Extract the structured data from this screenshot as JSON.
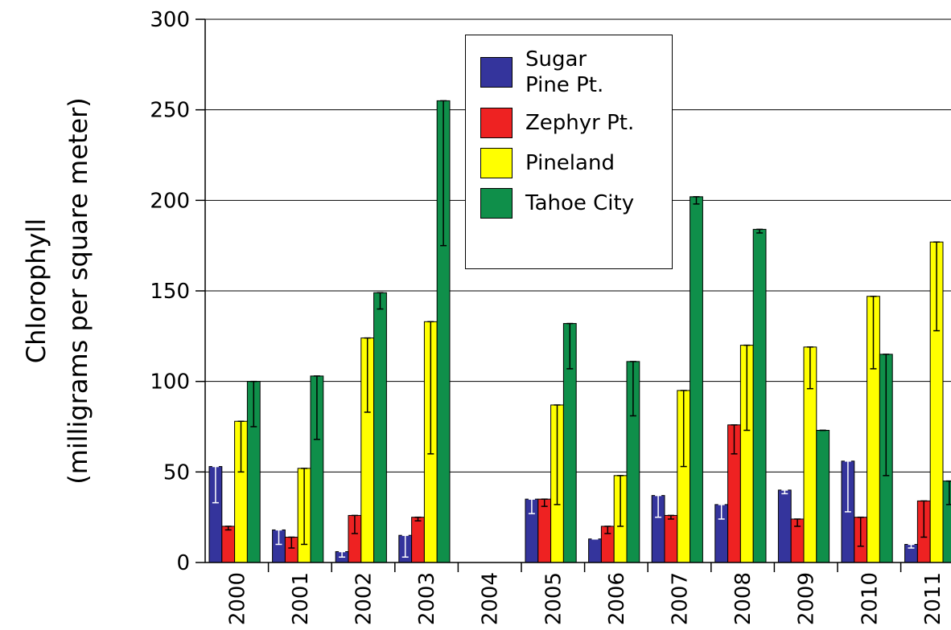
{
  "chart_data": {
    "type": "bar",
    "y_label": [
      "Chlorophyll",
      "(milligrams per square meter)"
    ],
    "categories": [
      "2000",
      "2001",
      "2002",
      "2003",
      "2004",
      "2005",
      "2006",
      "2007",
      "2008",
      "2009",
      "2010",
      "2011"
    ],
    "series": [
      {
        "name": "Sugar Pine Pt.",
        "color": "#34349c",
        "error_color": "#ffffff",
        "values": [
          53,
          18,
          6,
          15,
          null,
          35,
          13,
          37,
          32,
          40,
          56,
          10
        ],
        "errors": [
          20,
          8,
          3,
          12,
          null,
          8,
          0,
          12,
          8,
          2,
          28,
          2
        ]
      },
      {
        "name": "Zephyr Pt.",
        "color": "#ee2222",
        "error_color": "#000000",
        "values": [
          20,
          14,
          26,
          25,
          null,
          35,
          20,
          26,
          76,
          24,
          25,
          34
        ],
        "errors": [
          2,
          6,
          10,
          2,
          null,
          4,
          4,
          2,
          16,
          4,
          16,
          20
        ]
      },
      {
        "name": "Pineland",
        "color": "#ffff00",
        "error_color": "#000000",
        "values": [
          78,
          52,
          124,
          133,
          null,
          87,
          48,
          95,
          120,
          119,
          147,
          177
        ],
        "errors": [
          28,
          42,
          41,
          73,
          null,
          55,
          28,
          42,
          47,
          23,
          40,
          49
        ]
      },
      {
        "name": "Tahoe City",
        "color": "#0f8f4a",
        "error_color": "#000000",
        "values": [
          100,
          103,
          149,
          255,
          null,
          132,
          111,
          202,
          184,
          73,
          115,
          45
        ],
        "errors": [
          25,
          35,
          9,
          80,
          null,
          25,
          30,
          4,
          2,
          0,
          67,
          13
        ]
      }
    ],
    "ylim": [
      0,
      300
    ],
    "yticks": [
      0,
      50,
      100,
      150,
      200,
      250,
      300
    ],
    "grid": true
  }
}
